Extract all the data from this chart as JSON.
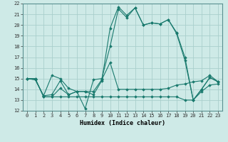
{
  "title": "",
  "xlabel": "Humidex (Indice chaleur)",
  "ylabel": "",
  "background_color": "#ceeae7",
  "grid_color": "#aacfcc",
  "line_color": "#1a7a6e",
  "xlim": [
    -0.5,
    23.5
  ],
  "ylim": [
    12,
    22
  ],
  "yticks": [
    12,
    13,
    14,
    15,
    16,
    17,
    18,
    19,
    20,
    21,
    22
  ],
  "xticks": [
    0,
    1,
    2,
    3,
    4,
    5,
    6,
    7,
    8,
    9,
    10,
    11,
    12,
    13,
    14,
    15,
    16,
    17,
    18,
    19,
    20,
    21,
    22,
    23
  ],
  "series": [
    [
      15.0,
      14.9,
      13.4,
      15.3,
      15.0,
      14.1,
      13.8,
      12.2,
      14.9,
      15.0,
      18.0,
      21.5,
      20.7,
      21.6,
      20.0,
      20.2,
      20.1,
      20.5,
      19.3,
      17.0,
      13.0,
      14.0,
      15.1,
      14.7
    ],
    [
      15.0,
      15.0,
      13.3,
      13.3,
      14.1,
      13.5,
      13.8,
      13.8,
      13.8,
      14.9,
      16.5,
      14.0,
      14.0,
      14.0,
      14.0,
      14.0,
      14.0,
      14.1,
      14.4,
      14.5,
      14.7,
      14.8,
      15.3,
      14.7
    ],
    [
      15.0,
      14.9,
      13.4,
      13.5,
      14.8,
      13.5,
      13.8,
      13.8,
      13.5,
      14.8,
      19.7,
      21.7,
      20.9,
      21.6,
      20.0,
      20.2,
      20.1,
      20.5,
      19.2,
      16.7,
      13.0,
      14.0,
      15.1,
      14.7
    ],
    [
      15.0,
      15.0,
      13.3,
      13.3,
      13.3,
      13.3,
      13.3,
      13.3,
      13.3,
      13.3,
      13.3,
      13.3,
      13.3,
      13.3,
      13.3,
      13.3,
      13.3,
      13.3,
      13.3,
      13.0,
      13.0,
      13.8,
      14.4,
      14.5
    ]
  ]
}
